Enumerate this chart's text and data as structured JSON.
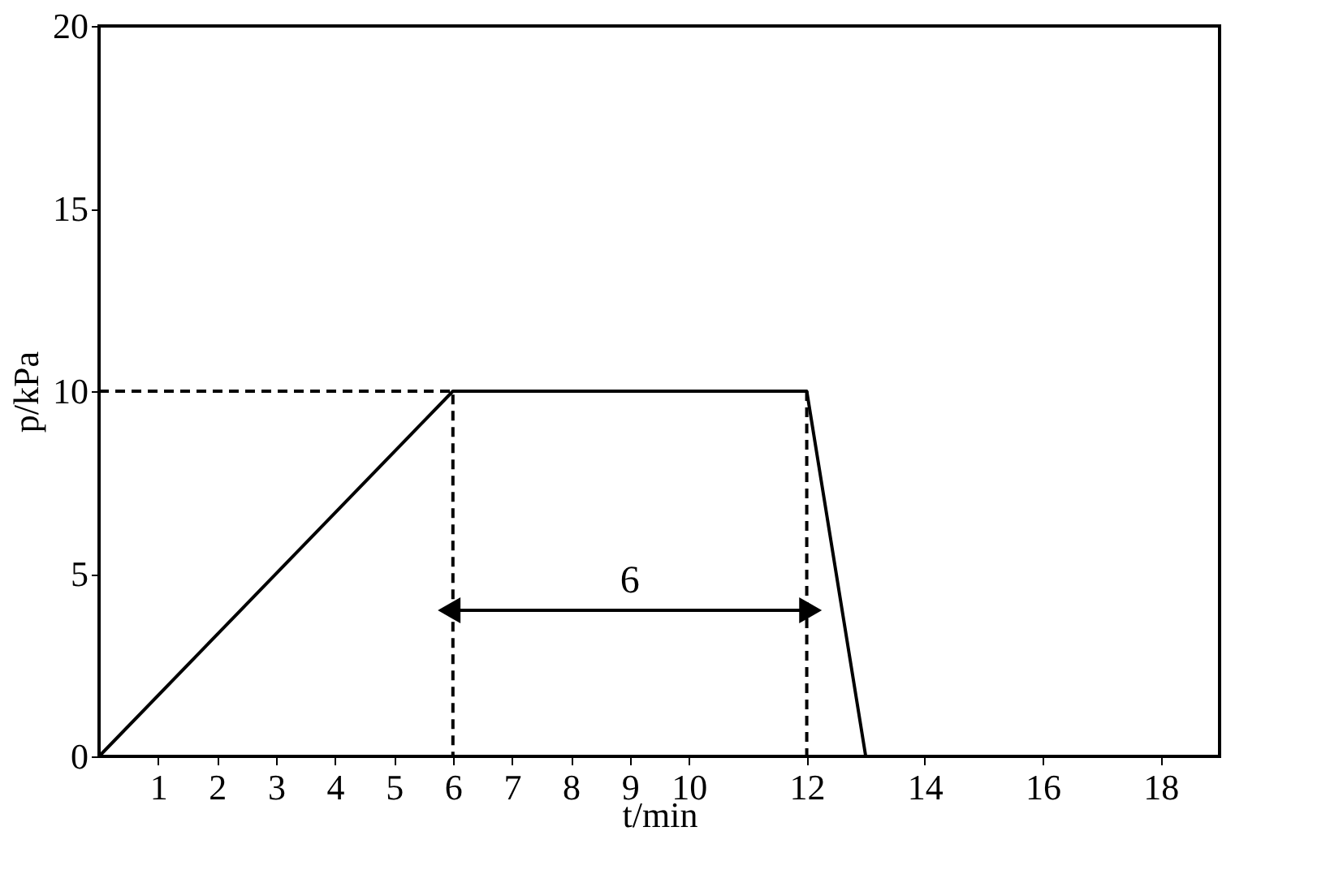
{
  "chart_data": {
    "type": "line",
    "xlabel": "t/min",
    "ylabel": "p/kPa",
    "xlim": [
      0,
      19
    ],
    "xticks": [
      1,
      2,
      3,
      4,
      5,
      6,
      7,
      8,
      9,
      10,
      12,
      14,
      16,
      18
    ],
    "ylim": [
      0,
      20
    ],
    "yticks": [
      0,
      5,
      10,
      15,
      20
    ],
    "series": [
      {
        "color": "#000000",
        "x": [
          0,
          6,
          12,
          13,
          19
        ],
        "values": [
          0,
          10,
          10,
          0,
          0
        ],
        "line_style": "solid"
      },
      {
        "color": "#000000",
        "x": [
          0,
          6,
          6
        ],
        "values": [
          10,
          10,
          0
        ],
        "line_style": "dashed"
      },
      {
        "color": "#000000",
        "x": [
          12,
          12
        ],
        "values": [
          10,
          0
        ],
        "line_style": "dashed"
      },
      {
        "color": "#000000",
        "x": [
          6,
          12
        ],
        "values": [
          4,
          4
        ],
        "line_style": "solid",
        "marker": "triangle"
      }
    ],
    "annotations": [
      "6"
    ],
    "grid": false,
    "marker": "none"
  }
}
